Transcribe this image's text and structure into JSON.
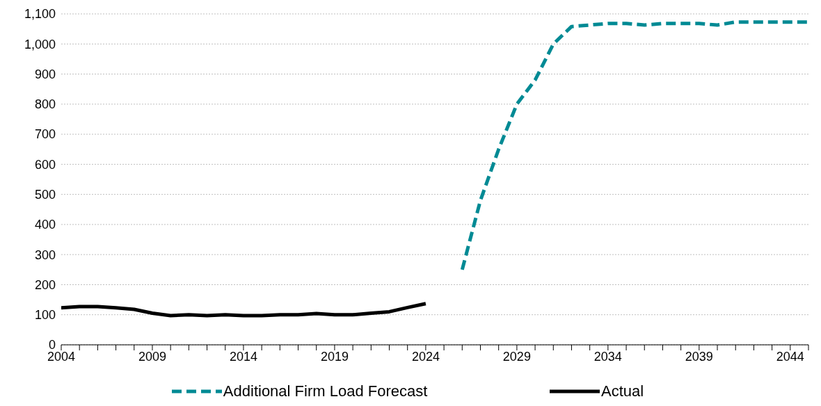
{
  "chart_data": {
    "type": "line",
    "x": [
      2004,
      2005,
      2006,
      2007,
      2008,
      2009,
      2010,
      2011,
      2012,
      2013,
      2014,
      2015,
      2016,
      2017,
      2018,
      2019,
      2020,
      2021,
      2022,
      2023,
      2024
    ],
    "series": [
      {
        "name": "Additional Firm Load Forecast",
        "color": "#008a94",
        "line_style": "dashed",
        "x": [
          2026,
          2027,
          2028,
          2029,
          2030,
          2031,
          2032,
          2033,
          2034,
          2035,
          2036,
          2037,
          2038,
          2039,
          2040,
          2041,
          2042,
          2043,
          2044,
          2045
        ],
        "values": [
          250,
          480,
          650,
          800,
          880,
          1000,
          1058,
          1063,
          1068,
          1068,
          1063,
          1068,
          1068,
          1068,
          1063,
          1073,
          1073,
          1073,
          1073,
          1073
        ]
      },
      {
        "name": "Actual",
        "color": "#000000",
        "line_style": "solid",
        "values": [
          123,
          127,
          127,
          123,
          118,
          105,
          97,
          100,
          97,
          100,
          97,
          97,
          100,
          100,
          104,
          100,
          100,
          105,
          110,
          124,
          137
        ]
      }
    ],
    "xlim": [
      2004,
      2045
    ],
    "xticks": [
      2004,
      {
        "value": 2005,
        "label": null
      },
      {
        "value": 2006,
        "label": null
      },
      {
        "value": 2007,
        "label": null
      },
      {
        "value": 2008,
        "label": null
      },
      2009,
      {
        "value": 2010,
        "label": null
      },
      {
        "value": 2011,
        "label": null
      },
      {
        "value": 2012,
        "label": null
      },
      {
        "value": 2013,
        "label": null
      },
      2014,
      {
        "value": 2015,
        "label": null
      },
      {
        "value": 2016,
        "label": null
      },
      {
        "value": 2017,
        "label": null
      },
      {
        "value": 2018,
        "label": null
      },
      2019,
      {
        "value": 2020,
        "label": null
      },
      {
        "value": 2021,
        "label": null
      },
      {
        "value": 2022,
        "label": null
      },
      {
        "value": 2023,
        "label": null
      },
      2024,
      {
        "value": 2025,
        "label": null
      },
      {
        "value": 2026,
        "label": null
      },
      {
        "value": 2027,
        "label": null
      },
      {
        "value": 2028,
        "label": null
      },
      2029,
      {
        "value": 2030,
        "label": null
      },
      {
        "value": 2031,
        "label": null
      },
      {
        "value": 2032,
        "label": null
      },
      {
        "value": 2033,
        "label": null
      },
      2034,
      {
        "value": 2035,
        "label": null
      },
      {
        "value": 2036,
        "label": null
      },
      {
        "value": 2037,
        "label": null
      },
      {
        "value": 2038,
        "label": null
      },
      2039,
      {
        "value": 2040,
        "label": null
      },
      {
        "value": 2041,
        "label": null
      },
      {
        "value": 2042,
        "label": null
      },
      {
        "value": 2043,
        "label": null
      },
      2044,
      {
        "value": 2045,
        "label": null
      }
    ],
    "ylim": [
      0,
      1100
    ],
    "yticks": [
      0,
      100,
      200,
      300,
      400,
      500,
      600,
      700,
      800,
      900,
      {
        "value": 1000,
        "label": "1,000"
      },
      {
        "value": 1100,
        "label": "1,100"
      }
    ],
    "grid": "y",
    "legend": "bottom",
    "marker": "none"
  }
}
